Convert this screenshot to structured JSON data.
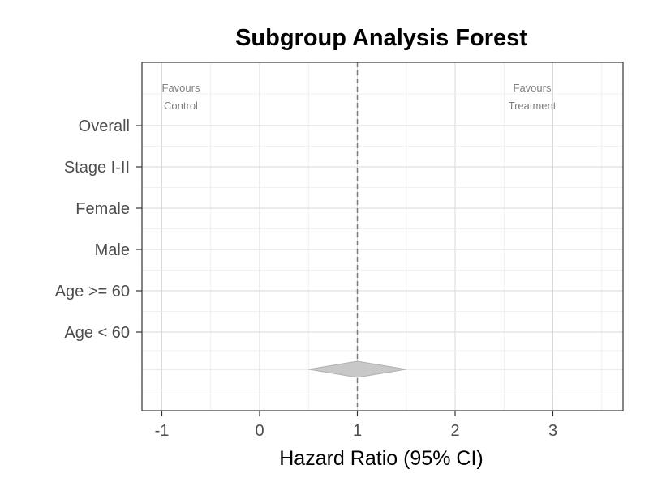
{
  "chart_data": {
    "type": "scatter",
    "title": "Subgroup Analysis Forest",
    "xlabel": "Hazard Ratio (95% CI)",
    "ylabel": "",
    "xlim": [
      -1.2,
      3.7
    ],
    "xticks": [
      -1,
      0,
      1,
      2,
      3
    ],
    "xtick_labels": [
      "-1",
      "0",
      "1",
      "2",
      "3"
    ],
    "reference_line": 1,
    "grid": true,
    "categories": [
      "Overall",
      "Stage I-II",
      "Female",
      "Male",
      "Age >= 60",
      "Age < 60"
    ],
    "annotations": {
      "left": [
        "Favours",
        "Control"
      ],
      "right": [
        "Favours",
        "Treatment"
      ]
    },
    "summary_diamond": {
      "estimate": 1.0,
      "lower": 0.5,
      "upper": 1.5
    },
    "colors": {
      "diamond_fill": "#c8c8c8",
      "diamond_stroke": "#b0b0b0",
      "reference": "#7a7a7a"
    }
  }
}
